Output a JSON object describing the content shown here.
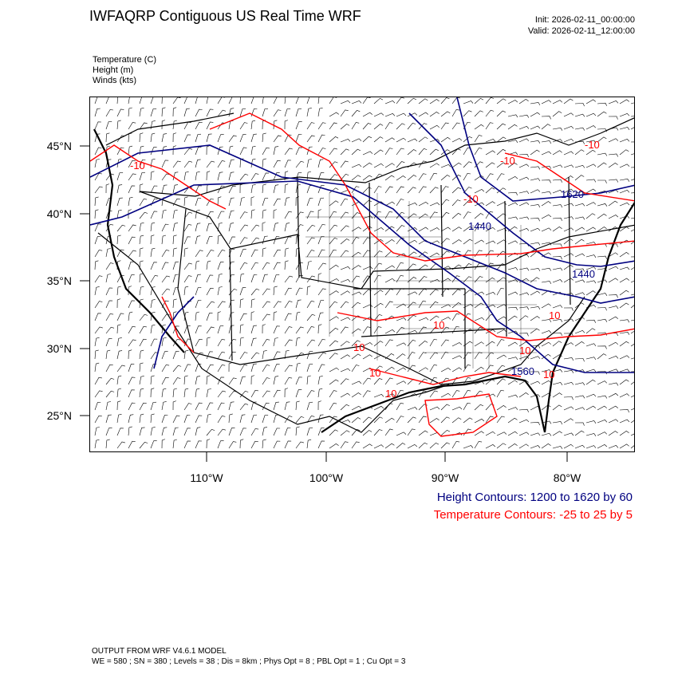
{
  "header": {
    "title": "IWFAQRP Contiguous US Real Time WRF",
    "init": "Init: 2026-02-11_00:00:00",
    "valid": "Valid: 2026-02-11_12:00:00"
  },
  "fields": [
    "Temperature   (C)",
    "Height   (m)",
    "Winds   (kts)"
  ],
  "axes": {
    "lat_labels": [
      "45°N",
      "40°N",
      "35°N",
      "30°N",
      "25°N"
    ],
    "lon_labels": [
      "110°W",
      "100°W",
      "90°W",
      "80°W"
    ]
  },
  "contour_labels": {
    "height": [
      "1440",
      "1440",
      "1620",
      "1560"
    ],
    "temperature": [
      "-10",
      "-10",
      "-10",
      "-10",
      "10",
      "10",
      "10",
      "10",
      "10",
      "10",
      "10"
    ]
  },
  "legend": {
    "height": "Height Contours: 1200 to 1620 by 60",
    "temperature": "Temperature Contours: -25 to 25 by 5"
  },
  "footer": {
    "line1": "OUTPUT FROM WRF V4.6.1 MODEL",
    "line2": "WE = 580 ; SN = 380 ; Levels = 38 ; Dis = 8km ; Phys Opt = 8 ; PBL Opt = 1 ; Cu Opt = 3"
  },
  "colors": {
    "height": "#000080",
    "temperature": "#ff0000",
    "borders": "#000000"
  }
}
